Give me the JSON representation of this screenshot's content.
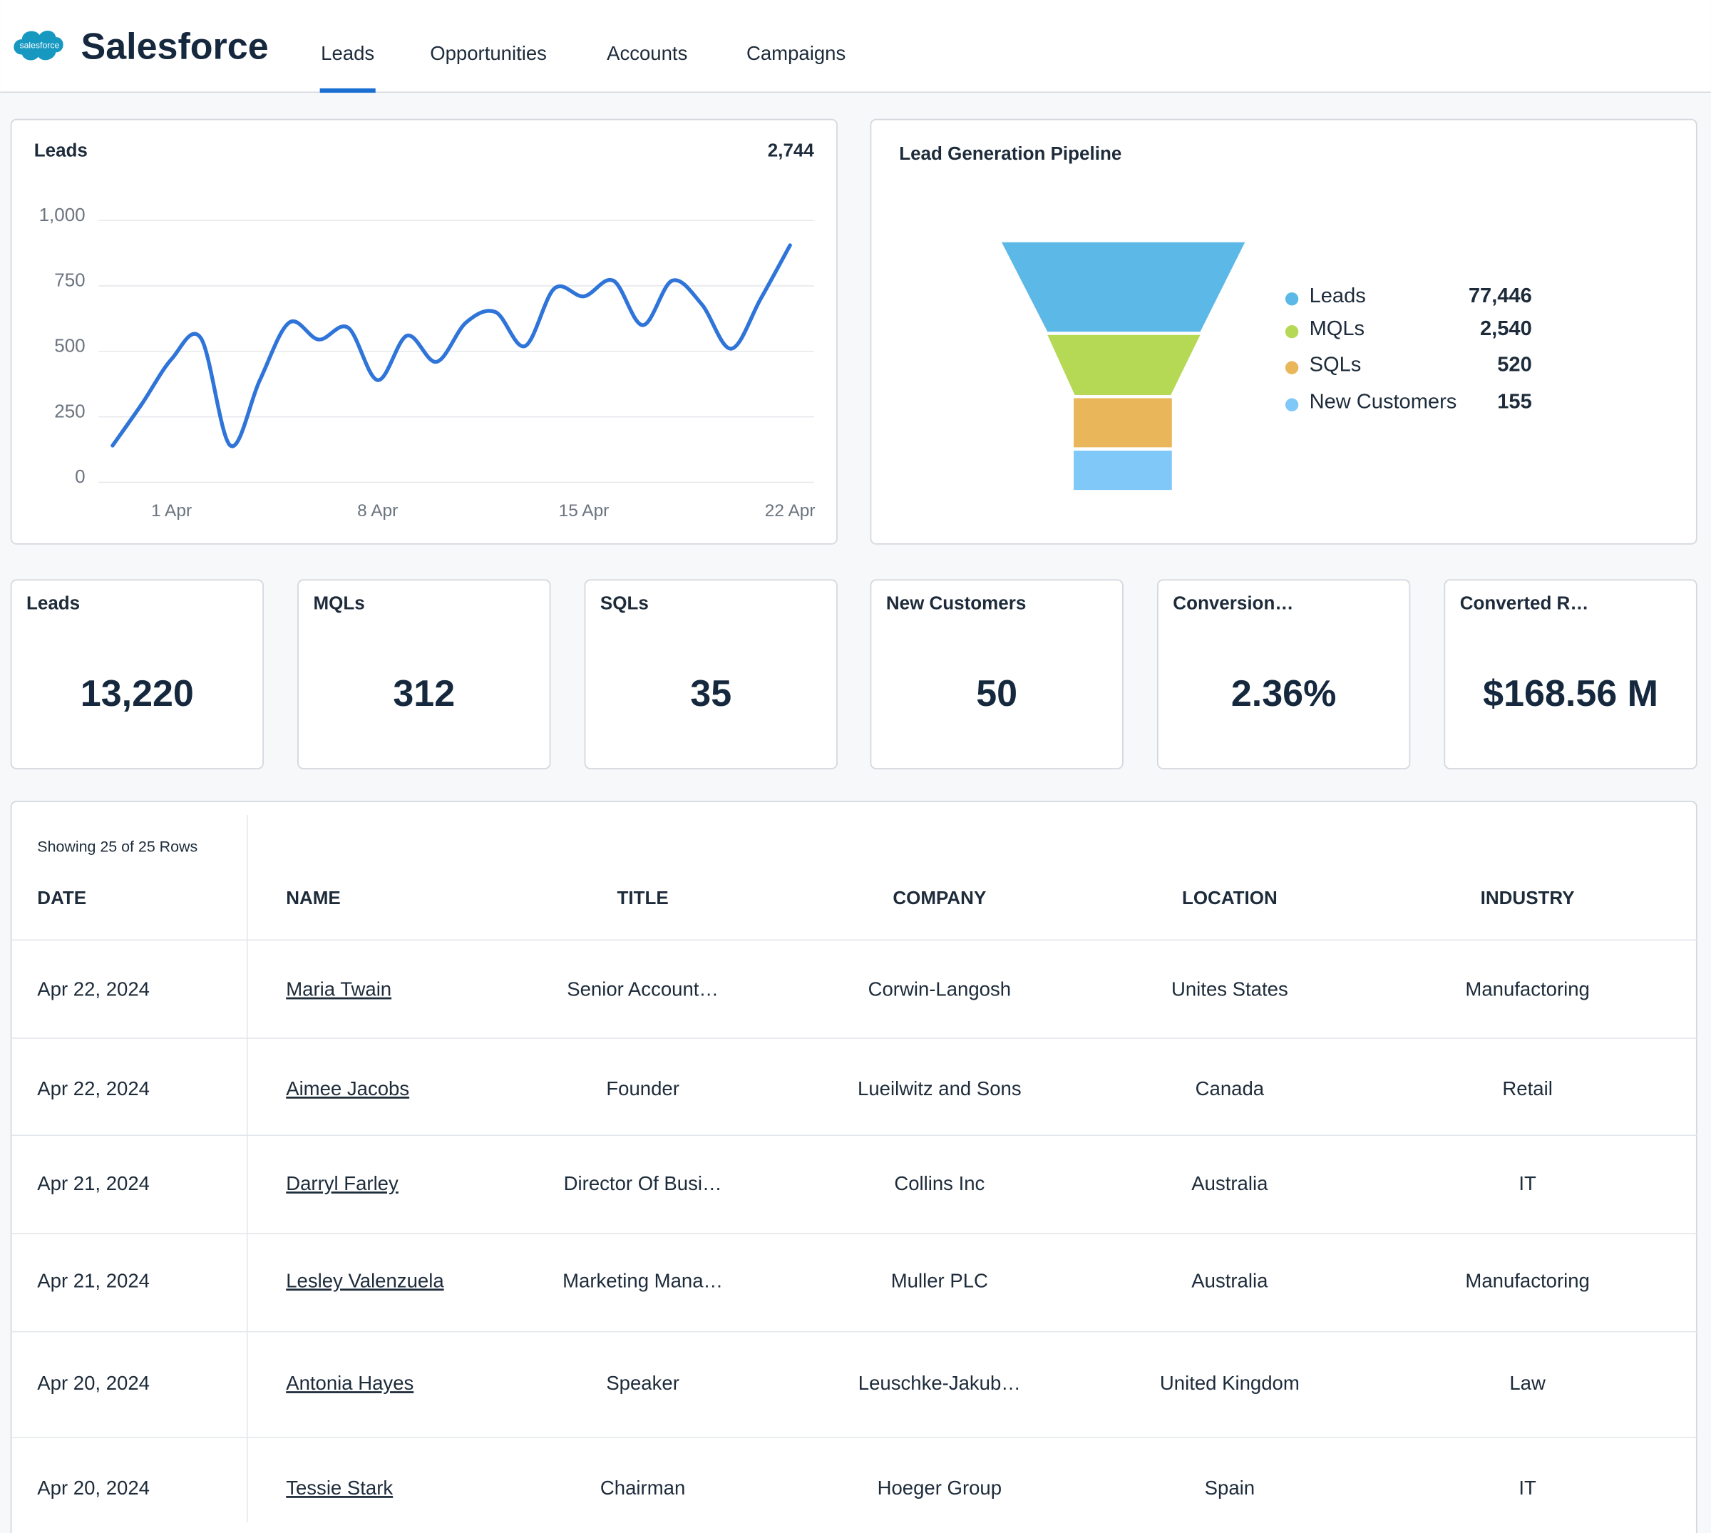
{
  "header": {
    "logo_text": "salesforce",
    "brand": "Salesforce",
    "tabs": [
      "Leads",
      "Opportunities",
      "Accounts",
      "Campaigns"
    ],
    "active_tab": 0
  },
  "leads_chart": {
    "type": "line",
    "title": "Leads",
    "total": "2,744",
    "color": "#2f74d8",
    "categories": [
      null,
      null,
      "1 Apr",
      null,
      null,
      null,
      null,
      null,
      null,
      "8 Apr",
      null,
      null,
      null,
      null,
      null,
      null,
      "15 Apr",
      null,
      null,
      null,
      null,
      null,
      null,
      "22 Apr"
    ],
    "values": [
      140,
      300,
      470,
      550,
      140,
      390,
      610,
      545,
      590,
      390,
      560,
      460,
      610,
      650,
      520,
      740,
      710,
      770,
      600,
      770,
      680,
      510,
      700,
      905
    ],
    "ylim": [
      0,
      1000
    ],
    "yticks": [
      0,
      250,
      500,
      750,
      {
        "value": 1000,
        "label": "1,000"
      }
    ],
    "grid": true
  },
  "funnel": {
    "type": "funnel",
    "title": "Lead Generation Pipeline",
    "stages": [
      {
        "name": "Leads",
        "value": 77446,
        "value_label": "77,446",
        "color": "#5cb8e6"
      },
      {
        "name": "MQLs",
        "value": 2540,
        "value_label": "2,540",
        "color": "#b5d955"
      },
      {
        "name": "SQLs",
        "value": 520,
        "value_label": "520",
        "color": "#eab65a"
      },
      {
        "name": "New Customers",
        "value": 155,
        "value_label": "155",
        "color": "#7fc8f8"
      }
    ]
  },
  "kpis": [
    {
      "label": "Leads",
      "value": "13,220"
    },
    {
      "label": "MQLs",
      "value": "312"
    },
    {
      "label": "SQLs",
      "value": "35"
    },
    {
      "label": "New Customers",
      "value": "50"
    },
    {
      "label": "Conversion…",
      "value": "2.36%"
    },
    {
      "label": "Converted R…",
      "value": "$168.56 M"
    }
  ],
  "table": {
    "caption": "Showing 25 of 25 Rows",
    "columns": [
      "DATE",
      "NAME",
      "TITLE",
      "COMPANY",
      "LOCATION",
      "INDUSTRY"
    ],
    "rows": [
      [
        "Apr 22, 2024",
        "Maria Twain",
        "Senior Account…",
        "Corwin-Langosh",
        "Unites States",
        "Manufactoring"
      ],
      [
        "Apr 22, 2024",
        "Aimee Jacobs",
        "Founder",
        "Lueilwitz and Sons",
        "Canada",
        "Retail"
      ],
      [
        "Apr 21, 2024",
        "Darryl Farley",
        "Director Of Busi…",
        "Collins Inc",
        "Australia",
        "IT"
      ],
      [
        "Apr 21, 2024",
        "Lesley Valenzuela",
        "Marketing Mana…",
        "Muller PLC",
        "Australia",
        "Manufactoring"
      ],
      [
        "Apr 20, 2024",
        "Antonia Hayes",
        "Speaker",
        "Leuschke-Jakub…",
        "United Kingdom",
        "Law"
      ],
      [
        "Apr 20, 2024",
        "Tessie Stark",
        "Chairman",
        "Hoeger Group",
        "Spain",
        "IT"
      ]
    ]
  }
}
